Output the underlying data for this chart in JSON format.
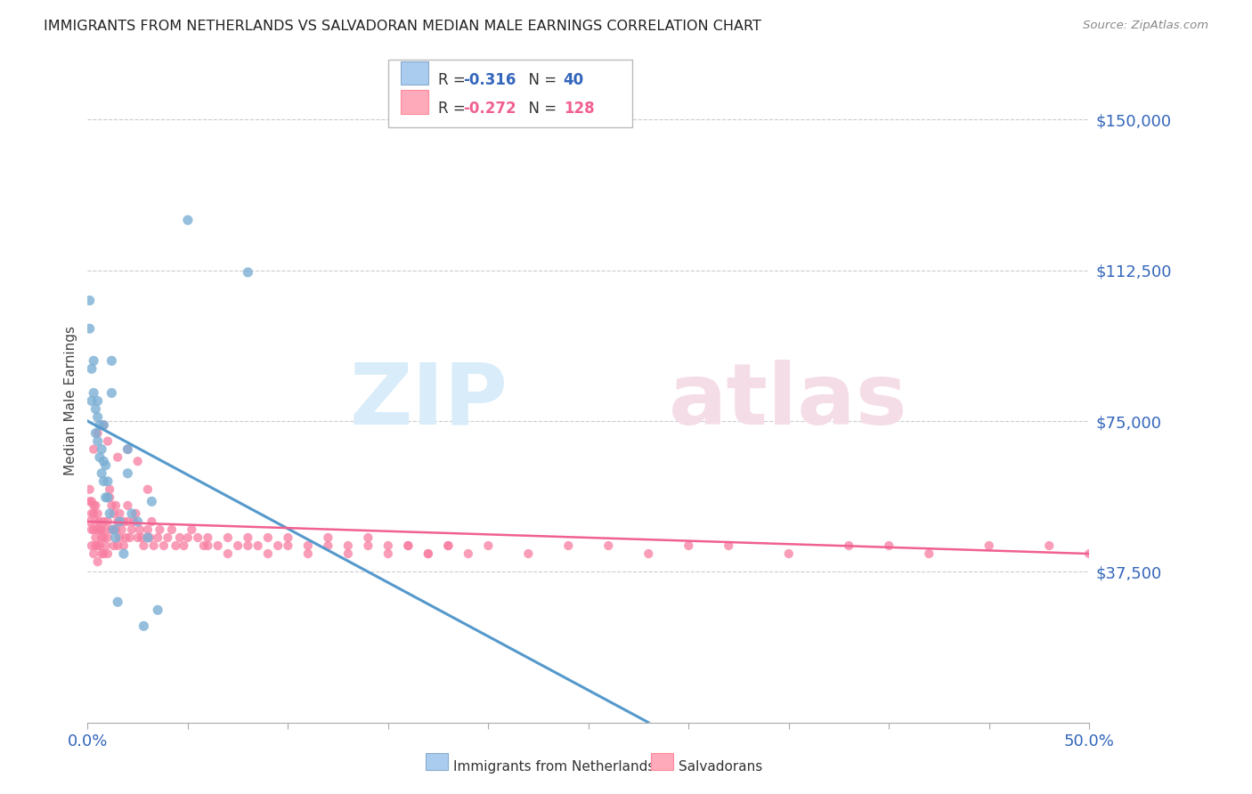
{
  "title": "IMMIGRANTS FROM NETHERLANDS VS SALVADORAN MEDIAN MALE EARNINGS CORRELATION CHART",
  "source": "Source: ZipAtlas.com",
  "ylabel": "Median Male Earnings",
  "xlim": [
    0.0,
    0.5
  ],
  "ylim": [
    0,
    160000
  ],
  "color_blue": "#7BAFD4",
  "color_pink": "#F87DA0",
  "color_blue_line": "#5599CC",
  "color_pink_line": "#F06090",
  "color_blue_dash": "#AACCDD",
  "legend1_r": "R = -0.316",
  "legend1_n": "N =  40",
  "legend2_r": "R = -0.272",
  "legend2_n": "N = 128",
  "ytick_vals": [
    37500,
    75000,
    112500,
    150000
  ],
  "ytick_labels": [
    "$37,500",
    "$75,000",
    "$112,500",
    "$150,000"
  ],
  "nl_x": [
    0.001,
    0.001,
    0.002,
    0.002,
    0.003,
    0.003,
    0.004,
    0.004,
    0.005,
    0.005,
    0.005,
    0.006,
    0.006,
    0.007,
    0.007,
    0.008,
    0.008,
    0.009,
    0.009,
    0.01,
    0.01,
    0.011,
    0.012,
    0.013,
    0.014,
    0.015,
    0.016,
    0.018,
    0.02,
    0.022,
    0.025,
    0.028,
    0.03,
    0.032,
    0.035,
    0.05,
    0.08,
    0.012,
    0.02,
    0.008
  ],
  "nl_y": [
    98000,
    105000,
    88000,
    80000,
    82000,
    90000,
    78000,
    72000,
    76000,
    70000,
    80000,
    66000,
    74000,
    68000,
    62000,
    65000,
    60000,
    64000,
    56000,
    60000,
    56000,
    52000,
    82000,
    48000,
    46000,
    30000,
    50000,
    42000,
    62000,
    52000,
    50000,
    24000,
    46000,
    55000,
    28000,
    125000,
    112000,
    90000,
    68000,
    74000
  ],
  "sv_x": [
    0.001,
    0.001,
    0.001,
    0.002,
    0.002,
    0.002,
    0.002,
    0.003,
    0.003,
    0.003,
    0.003,
    0.004,
    0.004,
    0.004,
    0.004,
    0.005,
    0.005,
    0.005,
    0.005,
    0.006,
    0.006,
    0.006,
    0.007,
    0.007,
    0.007,
    0.008,
    0.008,
    0.008,
    0.009,
    0.009,
    0.01,
    0.01,
    0.01,
    0.011,
    0.011,
    0.012,
    0.012,
    0.013,
    0.013,
    0.014,
    0.014,
    0.015,
    0.015,
    0.016,
    0.016,
    0.017,
    0.018,
    0.018,
    0.019,
    0.02,
    0.02,
    0.021,
    0.022,
    0.023,
    0.024,
    0.025,
    0.026,
    0.027,
    0.028,
    0.03,
    0.031,
    0.032,
    0.033,
    0.035,
    0.036,
    0.038,
    0.04,
    0.042,
    0.044,
    0.046,
    0.048,
    0.05,
    0.052,
    0.055,
    0.058,
    0.06,
    0.065,
    0.07,
    0.075,
    0.08,
    0.085,
    0.09,
    0.095,
    0.1,
    0.11,
    0.12,
    0.13,
    0.14,
    0.15,
    0.16,
    0.17,
    0.18,
    0.2,
    0.22,
    0.24,
    0.26,
    0.28,
    0.3,
    0.32,
    0.35,
    0.38,
    0.4,
    0.42,
    0.45,
    0.48,
    0.5,
    0.06,
    0.07,
    0.08,
    0.09,
    0.1,
    0.11,
    0.12,
    0.13,
    0.14,
    0.15,
    0.16,
    0.17,
    0.18,
    0.19,
    0.003,
    0.005,
    0.008,
    0.01,
    0.015,
    0.02,
    0.025,
    0.03
  ],
  "sv_y": [
    55000,
    50000,
    58000,
    52000,
    48000,
    55000,
    44000,
    54000,
    48000,
    52000,
    42000,
    50000,
    46000,
    54000,
    44000,
    48000,
    44000,
    52000,
    40000,
    48000,
    44000,
    50000,
    46000,
    42000,
    48000,
    46000,
    42000,
    50000,
    44000,
    48000,
    46000,
    42000,
    50000,
    56000,
    58000,
    54000,
    48000,
    52000,
    44000,
    48000,
    54000,
    50000,
    44000,
    52000,
    46000,
    48000,
    50000,
    44000,
    46000,
    50000,
    54000,
    46000,
    48000,
    50000,
    52000,
    46000,
    48000,
    46000,
    44000,
    48000,
    46000,
    50000,
    44000,
    46000,
    48000,
    44000,
    46000,
    48000,
    44000,
    46000,
    44000,
    46000,
    48000,
    46000,
    44000,
    46000,
    44000,
    46000,
    44000,
    46000,
    44000,
    46000,
    44000,
    46000,
    44000,
    46000,
    44000,
    46000,
    44000,
    44000,
    42000,
    44000,
    44000,
    42000,
    44000,
    44000,
    42000,
    44000,
    44000,
    42000,
    44000,
    44000,
    42000,
    44000,
    44000,
    42000,
    44000,
    42000,
    44000,
    42000,
    44000,
    42000,
    44000,
    42000,
    44000,
    42000,
    44000,
    42000,
    44000,
    42000,
    68000,
    72000,
    74000,
    70000,
    66000,
    68000,
    65000,
    58000
  ]
}
